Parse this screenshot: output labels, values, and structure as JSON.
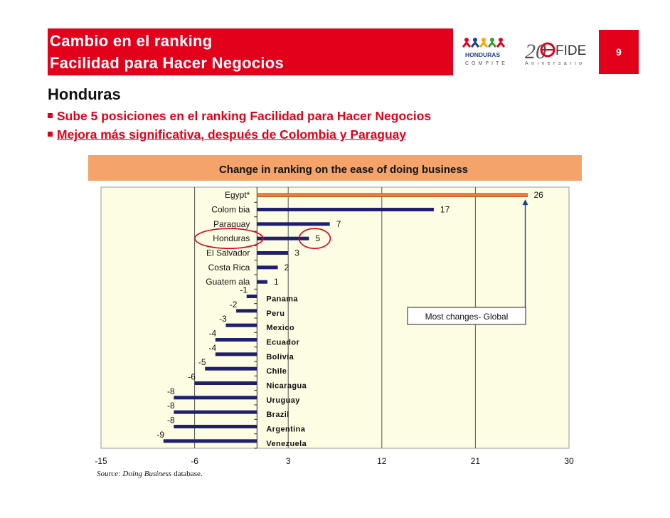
{
  "header": {
    "title_line1": "Cambio en el ranking",
    "title_line2": "Facilidad para Hacer Negocios",
    "page_number": "9"
  },
  "logos": {
    "honduras_text": "HONDURAS",
    "honduras_sub": "COMPITE",
    "fide_number": "20",
    "fide_name": "FIDE",
    "fide_sub": "Aniversario"
  },
  "body": {
    "heading": "Honduras",
    "bullet1": "Sube 5 posiciones en el ranking Facilidad para Hacer Negocios",
    "bullet2": "Mejora más significativa, después de Colombia y Paraguay"
  },
  "chart_data": {
    "type": "bar",
    "orientation": "horizontal",
    "title": "Change in ranking on the ease of doing business",
    "xlim": [
      -15,
      30
    ],
    "xticks": [
      "-15",
      "-6",
      "3",
      "12",
      "21",
      "30"
    ],
    "categories": [
      "Egypt*",
      "Colom bia",
      "Paraguay",
      "Honduras",
      "El Salvador",
      "Costa Rica",
      "Guatem ala",
      "Panama",
      "Peru",
      "Mexico",
      "Ecuador",
      "Bolivia",
      "Chile",
      "Nicaragua",
      "Uruguay",
      "Brazil",
      "Argentina",
      "Venezuela"
    ],
    "values": [
      26,
      17,
      7,
      5,
      3,
      2,
      1,
      -1,
      -2,
      -3,
      -4,
      -4,
      -5,
      -6,
      -8,
      -8,
      -8,
      -9
    ],
    "value_labels": [
      "26",
      "17",
      "7",
      "5",
      "3",
      "2",
      "1",
      "-1",
      "-2",
      "-3",
      "-4",
      "-4",
      "-5",
      "-6",
      "-8",
      "-8",
      "-8",
      "-9"
    ],
    "highlight_category": "Egypt*",
    "annotation": "Most changes- Global",
    "source_prefix": "Source: Doing Business",
    "source_suffix": " database.",
    "colors": {
      "bar": "#1f1f6e",
      "highlight_bar": "#f07c3c",
      "plot_bg": "#fdfde3",
      "title_bg": "#f4a46a",
      "circle": "#e2001a"
    }
  }
}
